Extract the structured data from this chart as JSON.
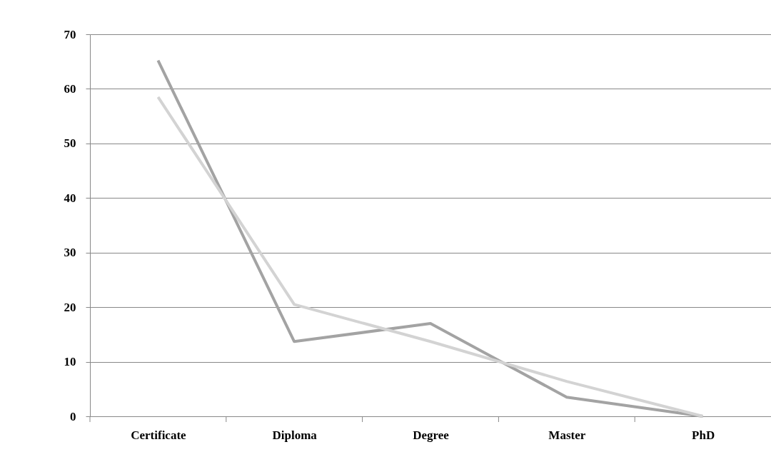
{
  "chart_data": {
    "type": "line",
    "categories": [
      "Certificate",
      "Diploma",
      "Degree",
      "Master",
      "PhD"
    ],
    "series": [
      {
        "color": "#a3a3a3",
        "values": [
          65.2,
          13.7,
          17.0,
          3.5,
          0
        ]
      },
      {
        "color": "#d3d3d3",
        "values": [
          58.5,
          20.5,
          13.7,
          6.4,
          0
        ]
      }
    ],
    "ylim": [
      0,
      70
    ],
    "yticks": [
      0,
      10,
      20,
      30,
      40,
      50,
      60,
      70
    ],
    "grid": "y",
    "marker": "none",
    "line_style": "solid"
  }
}
